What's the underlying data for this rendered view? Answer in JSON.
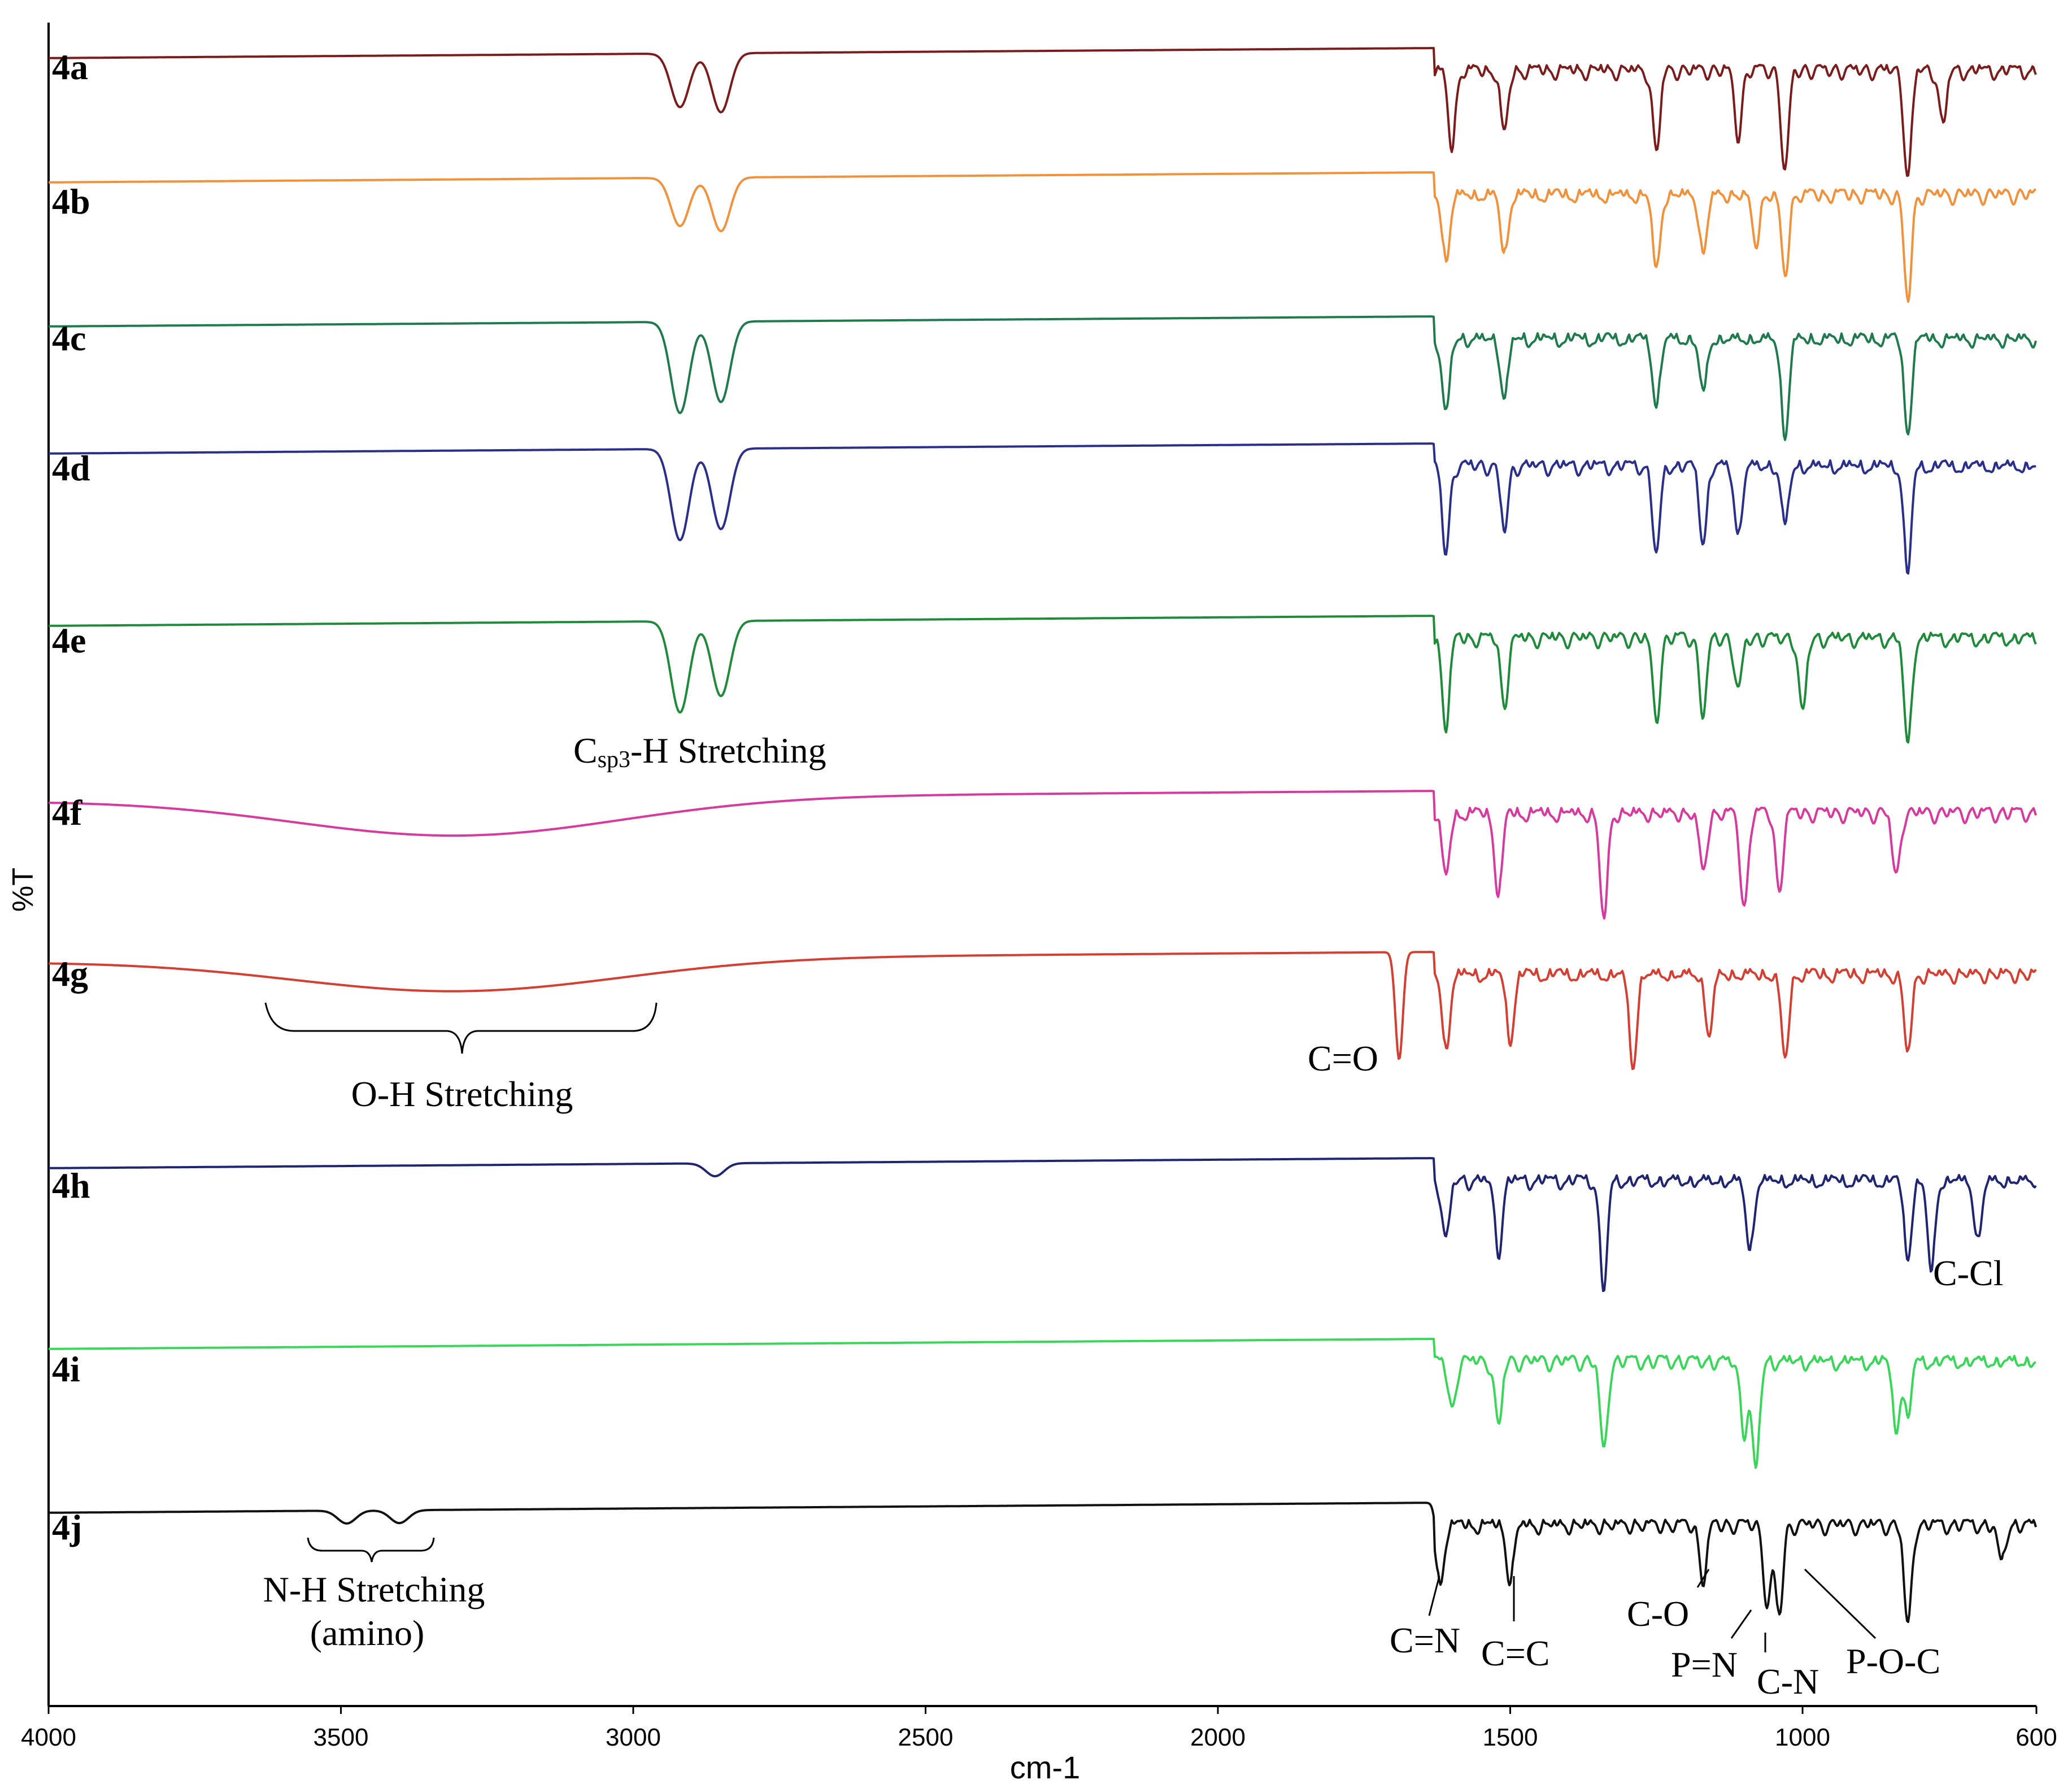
{
  "chart_data": {
    "type": "line",
    "title": "",
    "xlabel": "cm-1",
    "ylabel": "%T",
    "xlim": [
      4000,
      600
    ],
    "x_ticks": [
      "4000",
      "3500",
      "3000",
      "2500",
      "2000",
      "1500",
      "1000",
      "600"
    ],
    "x_tick_values": [
      4000,
      3500,
      3000,
      2500,
      2000,
      1500,
      1000,
      600
    ],
    "series": [
      {
        "name": "4a",
        "color": "#7a1c1c",
        "peaks": [
          [
            2920,
            0.5
          ],
          [
            2850,
            0.55
          ],
          [
            1600,
            0.7
          ],
          [
            1510,
            0.6
          ],
          [
            1250,
            0.75
          ],
          [
            1110,
            0.6
          ],
          [
            1030,
            0.95
          ],
          [
            820,
            1.0
          ],
          [
            760,
            0.5
          ]
        ]
      },
      {
        "name": "4b",
        "color": "#f0923c",
        "peaks": [
          [
            2920,
            0.45
          ],
          [
            2850,
            0.5
          ],
          [
            1610,
            0.6
          ],
          [
            1510,
            0.55
          ],
          [
            1250,
            0.7
          ],
          [
            1170,
            0.55
          ],
          [
            1080,
            0.45
          ],
          [
            1030,
            0.75
          ],
          [
            820,
            1.0
          ]
        ]
      },
      {
        "name": "4c",
        "color": "#1f7a4d",
        "peaks": [
          [
            2920,
            0.85
          ],
          [
            2850,
            0.75
          ],
          [
            1610,
            0.7
          ],
          [
            1510,
            0.55
          ],
          [
            1250,
            0.6
          ],
          [
            1170,
            0.5
          ],
          [
            1030,
            0.9
          ],
          [
            820,
            0.85
          ]
        ]
      },
      {
        "name": "4d",
        "color": "#2a2f8a",
        "peaks": [
          [
            2920,
            0.85
          ],
          [
            2850,
            0.75
          ],
          [
            1610,
            0.8
          ],
          [
            1510,
            0.6
          ],
          [
            1250,
            0.85
          ],
          [
            1170,
            0.7
          ],
          [
            1110,
            0.65
          ],
          [
            1030,
            0.55
          ],
          [
            820,
            1.0
          ]
        ]
      },
      {
        "name": "4e",
        "color": "#1e8a3a",
        "peaks": [
          [
            2920,
            0.85
          ],
          [
            2850,
            0.7
          ],
          [
            1610,
            0.8
          ],
          [
            1510,
            0.6
          ],
          [
            1250,
            0.75
          ],
          [
            1170,
            0.7
          ],
          [
            1110,
            0.5
          ],
          [
            1000,
            0.7
          ],
          [
            820,
            1.0
          ]
        ]
      },
      {
        "name": "4f",
        "color": "#d63a9e",
        "broad": [
          [
            3300,
            0.35,
            400
          ]
        ],
        "peaks": [
          [
            1610,
            0.6
          ],
          [
            1520,
            0.75
          ],
          [
            1340,
            1.0
          ],
          [
            1170,
            0.55
          ],
          [
            1100,
            0.9
          ],
          [
            1040,
            0.7
          ],
          [
            840,
            0.6
          ]
        ]
      },
      {
        "name": "4g",
        "color": "#d33f32",
        "broad": [
          [
            3300,
            0.3,
            400
          ]
        ],
        "peaks": [
          [
            1690,
            1.0
          ],
          [
            1610,
            0.7
          ],
          [
            1500,
            0.6
          ],
          [
            1290,
            0.85
          ],
          [
            1160,
            0.55
          ],
          [
            1030,
            0.8
          ],
          [
            820,
            0.75
          ]
        ]
      },
      {
        "name": "4h",
        "color": "#1f2570",
        "peaks": [
          [
            2860,
            0.12
          ],
          [
            1610,
            0.55
          ],
          [
            1520,
            0.65
          ],
          [
            1340,
            1.0
          ],
          [
            1090,
            0.65
          ],
          [
            820,
            0.7
          ],
          [
            780,
            0.85
          ],
          [
            700,
            0.55
          ]
        ]
      },
      {
        "name": "4i",
        "color": "#3ad65a",
        "peaks": [
          [
            1600,
            0.45
          ],
          [
            1520,
            0.6
          ],
          [
            1340,
            0.85
          ],
          [
            1100,
            0.65
          ],
          [
            1080,
            1.0
          ],
          [
            840,
            0.6
          ],
          [
            820,
            0.5
          ]
        ]
      },
      {
        "name": "4j",
        "color": "#111111",
        "peaks": [
          [
            3490,
            0.12
          ],
          [
            3400,
            0.12
          ],
          [
            1620,
            0.55
          ],
          [
            1500,
            0.5
          ],
          [
            1170,
            0.5
          ],
          [
            1060,
            0.75
          ],
          [
            1040,
            0.85
          ],
          [
            820,
            0.95
          ],
          [
            660,
            0.35
          ]
        ]
      }
    ],
    "annotations": [
      {
        "text": "Csp3-H Stretching",
        "main": "C",
        "sub": "sp3",
        "rest": "-H Stretching"
      },
      {
        "text": "O-H Stretching"
      },
      {
        "text": "C=O"
      },
      {
        "text": "C-Cl"
      },
      {
        "text": "N-H Stretching"
      },
      {
        "text": "(amino)"
      },
      {
        "text": "C=N"
      },
      {
        "text": "C=C"
      },
      {
        "text": "C-O"
      },
      {
        "text": "P=N"
      },
      {
        "text": "C-N"
      },
      {
        "text": "P-O-C"
      }
    ]
  }
}
